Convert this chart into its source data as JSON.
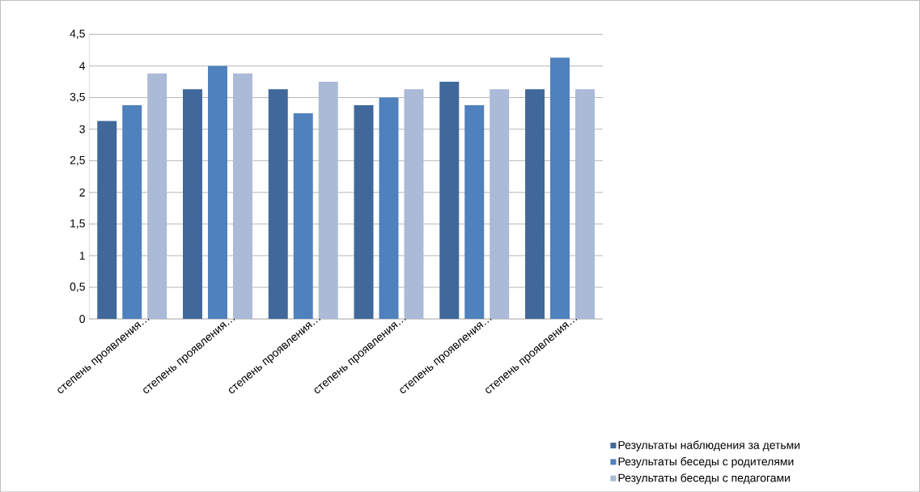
{
  "chart_data": {
    "type": "bar",
    "categories": [
      "степень проявления…",
      "степень проявления…",
      "степень проявления…",
      "степень проявления…",
      "степень проявления…",
      "степень проявления…"
    ],
    "series": [
      {
        "name": "Результаты наблюдения за детьми",
        "color": "#41689a",
        "values": [
          3.13,
          3.63,
          3.63,
          3.38,
          3.75,
          3.63
        ]
      },
      {
        "name": "Результаты беседы с родителями",
        "color": "#4f81bd",
        "values": [
          3.38,
          4.0,
          3.25,
          3.5,
          3.38,
          4.13
        ]
      },
      {
        "name": "Результаты беседы с педагогами",
        "color": "#aabad7",
        "values": [
          3.88,
          3.88,
          3.75,
          3.63,
          3.63,
          3.63
        ]
      }
    ],
    "ylim": [
      0,
      4.5
    ],
    "yticks": [
      0,
      {
        "value": 0.5,
        "label": "0,5"
      },
      1,
      {
        "value": 1.5,
        "label": "1,5"
      },
      2,
      {
        "value": 2.5,
        "label": "2,5"
      },
      3,
      {
        "value": 3.5,
        "label": "3,5"
      },
      4,
      {
        "value": 4.5,
        "label": "4,5"
      }
    ],
    "grid": "y",
    "legend": "bottom right"
  }
}
